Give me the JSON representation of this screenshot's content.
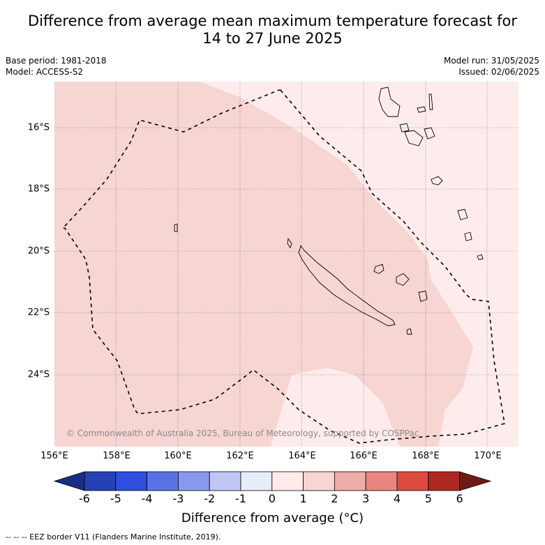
{
  "title_line1": "Difference from average mean maximum temperature forecast for",
  "title_line2": "14 to 27 June 2025",
  "base_period": "Base period: 1981-2018",
  "model": "Model: ACCESS-S2",
  "model_run": "Model run: 31/05/2025",
  "issued": "Issued: 02/06/2025",
  "lat_labels": [
    "16°S",
    "18°S",
    "20°S",
    "22°S",
    "24°S"
  ],
  "lon_labels": [
    "156°E",
    "158°E",
    "160°E",
    "162°E",
    "164°E",
    "166°E",
    "168°E",
    "170°E"
  ],
  "colorbar": {
    "ticks": [
      "-6",
      "-5",
      "-4",
      "-3",
      "-2",
      "-1",
      "0",
      "1",
      "2",
      "3",
      "4",
      "5",
      "6"
    ],
    "colors": [
      "#1a2e85",
      "#2440b4",
      "#2f4ee0",
      "#5872e6",
      "#8899ec",
      "#c0c7f4",
      "#e8ebfa",
      "#fdeceb",
      "#f6d5d3",
      "#eeaca7",
      "#e8867e",
      "#de4a40",
      "#ad2822",
      "#6e1b18"
    ],
    "label": "Difference from average (°C)"
  },
  "credit": "© Commonwealth of Australia 2025, Bureau of Meteorology, supported by COSPPac",
  "footer": "-- -- -- EEZ border V11 (Flanders Marine Institute, 2019).",
  "map_legend": {
    "band_0_1_color": "#fdeceb",
    "band_1_2_color": "#f6d5d3"
  }
}
